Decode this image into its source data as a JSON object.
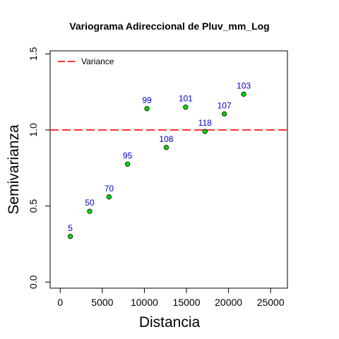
{
  "chart_data": {
    "type": "scatter",
    "title": "Variograma Adireccional de Pluv_mm_Log",
    "xlabel": "Distancia",
    "ylabel": "Semivarianza",
    "xlim": [
      -1200,
      27000
    ],
    "ylim": [
      -0.04,
      1.52
    ],
    "x_ticks": [
      0,
      5000,
      10000,
      15000,
      20000,
      25000
    ],
    "y_ticks": [
      0.0,
      0.5,
      1.0,
      1.5
    ],
    "x_tick_labels": [
      "0",
      "5000",
      "10000",
      "15000",
      "20000",
      "25000"
    ],
    "y_tick_labels": [
      "0.0",
      "0.5",
      "1.0",
      "1.5"
    ],
    "points": [
      {
        "x": 1200,
        "y": 0.3,
        "n": "5"
      },
      {
        "x": 3500,
        "y": 0.465,
        "n": "50"
      },
      {
        "x": 5800,
        "y": 0.56,
        "n": "70"
      },
      {
        "x": 8000,
        "y": 0.775,
        "n": "95"
      },
      {
        "x": 10300,
        "y": 1.14,
        "n": "99"
      },
      {
        "x": 12600,
        "y": 0.885,
        "n": "108"
      },
      {
        "x": 14900,
        "y": 1.15,
        "n": "101"
      },
      {
        "x": 17200,
        "y": 0.99,
        "n": "118"
      },
      {
        "x": 19500,
        "y": 1.105,
        "n": "107"
      },
      {
        "x": 21800,
        "y": 1.235,
        "n": "103"
      }
    ],
    "reference_line": {
      "y": 1.0,
      "label": "Variance",
      "color": "#ff3333",
      "style": "dashed"
    },
    "legend": {
      "position": "top-left",
      "entries": [
        "Variance"
      ]
    },
    "point_color": "#00dd00",
    "label_color": "#0000cc"
  }
}
